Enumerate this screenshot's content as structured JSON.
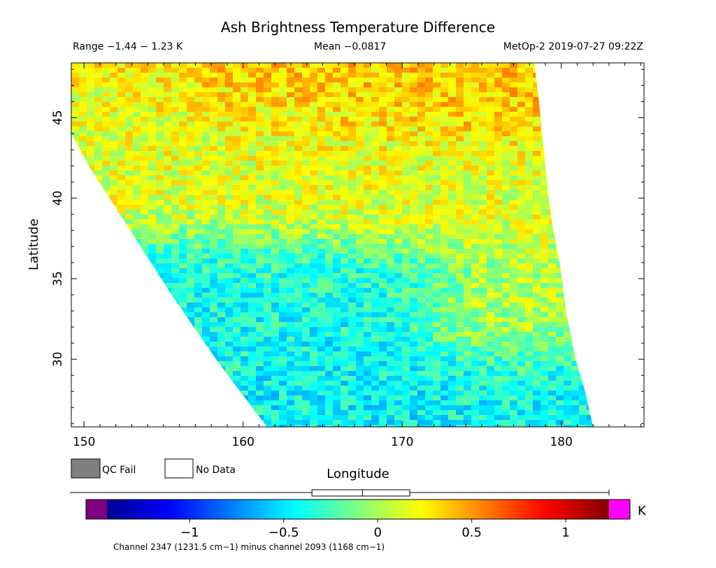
{
  "chart_data": {
    "type": "heatmap",
    "title": "Ash Brightness Temperature Difference",
    "range_text": "Range −1.44 − 1.23 K",
    "mean_text": "Mean −0.0817",
    "satellite_text": "MetOp-2 2019-07-27 09:22Z",
    "xlabel": "Longitude",
    "ylabel": "Latitude",
    "xlim": [
      149.2,
      185.2
    ],
    "ylim": [
      25.8,
      48.4
    ],
    "x_ticks": [
      150,
      160,
      170,
      180
    ],
    "y_ticks": [
      30,
      35,
      40,
      45
    ],
    "swath": {
      "west_edge": [
        [
          161.5,
          25.8
        ],
        [
          159.8,
          28.0
        ],
        [
          158.3,
          30.0
        ],
        [
          156.9,
          32.0
        ],
        [
          155.5,
          34.0
        ],
        [
          154.2,
          36.0
        ],
        [
          152.9,
          38.0
        ],
        [
          151.6,
          40.0
        ],
        [
          150.3,
          42.0
        ],
        [
          149.2,
          44.0
        ]
      ],
      "east_edge": [
        [
          182.0,
          25.8
        ],
        [
          181.5,
          28.0
        ],
        [
          180.9,
          30.0
        ],
        [
          180.3,
          33.0
        ],
        [
          179.9,
          36.0
        ],
        [
          179.5,
          38.0
        ],
        [
          179.2,
          40.0
        ],
        [
          178.9,
          43.0
        ],
        [
          178.6,
          46.0
        ],
        [
          178.3,
          48.4
        ]
      ]
    },
    "field_regions": [
      {
        "lat_range": [
          44,
          48.4
        ],
        "lon_range": [
          165,
          179
        ],
        "mean_btd": 0.45,
        "note": "warm (yellow-orange)"
      },
      {
        "lat_range": [
          37,
          44
        ],
        "lon_range": [
          160,
          178
        ],
        "mean_btd": 0.2,
        "note": "yellow-green"
      },
      {
        "lat_range": [
          33,
          37
        ],
        "lon_range": [
          158,
          172
        ],
        "mean_btd": -0.45,
        "note": "blue"
      },
      {
        "lat_range": [
          26,
          31
        ],
        "lon_range": [
          170,
          182
        ],
        "mean_btd": -0.5,
        "note": "blue"
      },
      {
        "lat_range": [
          30,
          36
        ],
        "lon_range": [
          174,
          180
        ],
        "mean_btd": 0.1,
        "note": "green"
      }
    ],
    "legend": [
      {
        "label": "QC Fail",
        "color": "#7f7f7f"
      },
      {
        "label": "No Data",
        "color": "#ffffff"
      }
    ],
    "colorbar": {
      "range": [
        -1.44,
        1.23
      ],
      "ticks": [
        -1,
        -0.5,
        0,
        0.5,
        1
      ],
      "tick_labels": [
        "−1",
        "−0.5",
        "0",
        "0.5",
        "1"
      ],
      "unit": "K",
      "label": "Channel 2347 (1231.5 cm−1) minus channel 2093 (1168 cm−1)",
      "under_color": "#7f0080",
      "over_color": "#ff00ff",
      "histogram_box": {
        "whisker_min": -1.44,
        "q1": -0.35,
        "median": -0.0817,
        "q3": 0.17,
        "whisker_max": 1.23
      }
    }
  }
}
